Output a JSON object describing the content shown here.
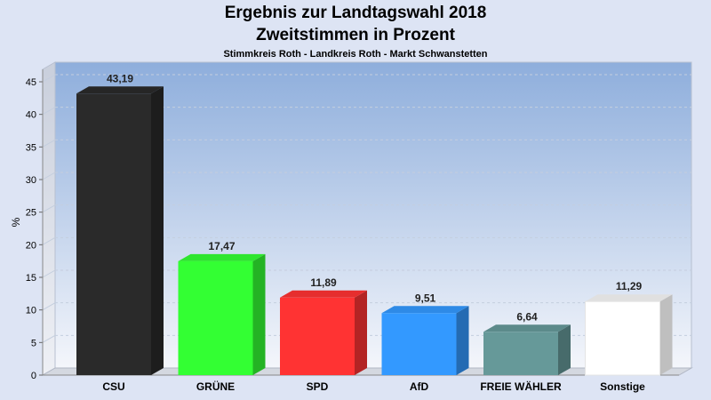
{
  "chart_data": {
    "type": "bar",
    "title": "Ergebnis zur Landtagswahl 2018",
    "title_line2": "Zweitstimmen in Prozent",
    "subtitle": "Stimmkreis Roth - Landkreis Roth - Markt Schwanstetten",
    "ylabel": "%",
    "ylim": [
      0,
      45
    ],
    "yticks": [
      0,
      5,
      10,
      15,
      20,
      25,
      30,
      35,
      40,
      45
    ],
    "grid": true,
    "categories": [
      "CSU",
      "GRÜNE",
      "SPD",
      "AfD",
      "FREIE WÄHLER",
      "Sonstige"
    ],
    "values": [
      43.19,
      17.47,
      11.89,
      9.51,
      6.64,
      11.29
    ],
    "value_labels": [
      "43,19",
      "17,47",
      "11,89",
      "9,51",
      "6,64",
      "11,29"
    ],
    "colors": [
      "#2a2a2a",
      "#33ff33",
      "#ff3333",
      "#3399ff",
      "#669999",
      "#ffffff"
    ]
  }
}
